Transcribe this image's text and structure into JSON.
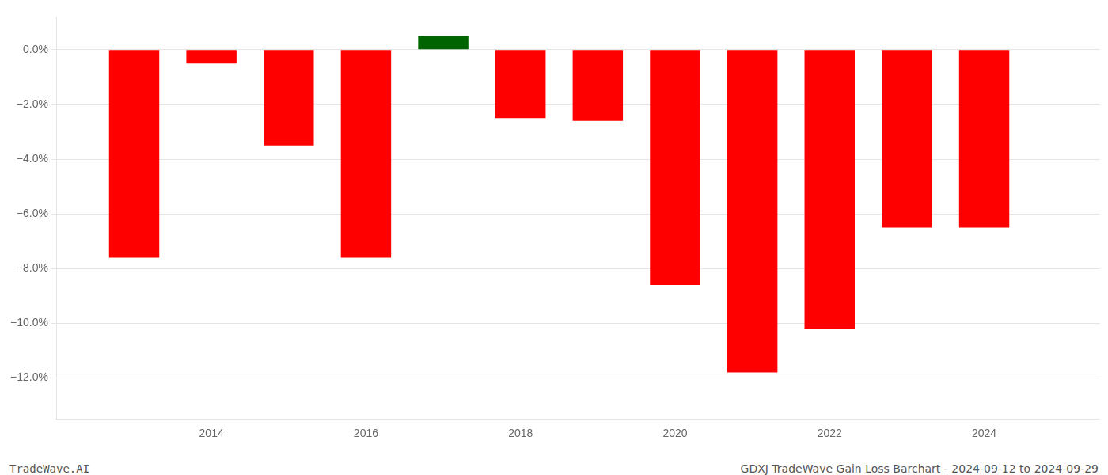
{
  "chart_data": {
    "type": "bar",
    "x": [
      2013,
      2014,
      2015,
      2016,
      2017,
      2018,
      2019,
      2020,
      2021,
      2022,
      2023,
      2024
    ],
    "values": [
      -7.6,
      -0.5,
      -3.5,
      -7.6,
      0.5,
      -2.5,
      -2.6,
      -8.6,
      -11.8,
      -10.2,
      -6.5,
      -6.5
    ],
    "colors": [
      "#ff0000",
      "#ff0000",
      "#ff0000",
      "#ff0000",
      "#006400",
      "#ff0000",
      "#ff0000",
      "#ff0000",
      "#ff0000",
      "#ff0000",
      "#ff0000",
      "#ff0000"
    ],
    "xlim": [
      2012.0,
      2025.5
    ],
    "xticks": [
      2014,
      2016,
      2018,
      2020,
      2022,
      2024
    ],
    "ylim": [
      -13.5,
      1.2
    ],
    "yticks": [
      {
        "value": 0.0,
        "label": "0.0%"
      },
      {
        "value": -2.0,
        "label": "−2.0%"
      },
      {
        "value": -4.0,
        "label": "−4.0%"
      },
      {
        "value": -6.0,
        "label": "−6.0%"
      },
      {
        "value": -8.0,
        "label": "−8.0%"
      },
      {
        "value": -10.0,
        "label": "−10.0%"
      },
      {
        "value": -12.0,
        "label": "−12.0%"
      }
    ],
    "grid": "y",
    "annotations": [
      "TradeWave.AI",
      "GDXJ TradeWave Gain Loss Barchart - 2024-09-12 to 2024-09-29"
    ]
  }
}
